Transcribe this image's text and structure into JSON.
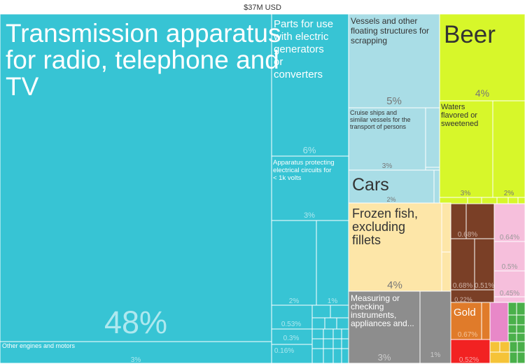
{
  "chart_data": {
    "type": "treemap",
    "title": "$37M USD",
    "colors": {
      "teal": "#37c4d4",
      "lightblue": "#a9dde6",
      "lime": "#d7f72a",
      "cream": "#fde6a8",
      "brown": "#7a3f26",
      "pink": "#f6bfdc",
      "gray": "#8d8d8d",
      "orange": "#e07b2a",
      "red": "#f22222",
      "green": "#4ab04a",
      "violet": "#e888c8",
      "yellow": "#f5c338"
    },
    "items": [
      {
        "id": "transmission",
        "label": "Transmission apparatus for radio, telephone and TV",
        "share": "48%",
        "share_pct": 48,
        "color": "teal"
      },
      {
        "id": "other-engines",
        "label": "Other engines and motors",
        "share": "3%",
        "share_pct": 3,
        "color": "teal"
      },
      {
        "id": "parts-electric",
        "label": "Parts for use with electric generators or converters",
        "share": "6%",
        "share_pct": 6,
        "color": "teal"
      },
      {
        "id": "apparatus-protecting",
        "label": "Apparatus protecting electrical circuits for < 1k volts",
        "share": "3%",
        "share_pct": 3,
        "color": "teal"
      },
      {
        "id": "teal-2",
        "label": "",
        "share": "2%",
        "share_pct": 2,
        "color": "teal"
      },
      {
        "id": "teal-1",
        "label": "",
        "share": "1%",
        "share_pct": 1,
        "color": "teal"
      },
      {
        "id": "teal-053",
        "label": "",
        "share": "0.53%",
        "share_pct": 0.53,
        "color": "teal"
      },
      {
        "id": "teal-03",
        "label": "",
        "share": "0.3%",
        "share_pct": 0.3,
        "color": "teal"
      },
      {
        "id": "teal-016",
        "label": "",
        "share": "0.16%",
        "share_pct": 0.16,
        "color": "teal"
      },
      {
        "id": "vessels-scrapping",
        "label": "Vessels and other floating structures for scrapping",
        "share": "5%",
        "share_pct": 5,
        "color": "lightblue"
      },
      {
        "id": "cruise-ships",
        "label": "Cruise ships and similar vessels for the transport of persons",
        "share": "3%",
        "share_pct": 3,
        "color": "lightblue"
      },
      {
        "id": "cars",
        "label": "Cars",
        "share": "2%",
        "share_pct": 2,
        "color": "lightblue"
      },
      {
        "id": "beer",
        "label": "Beer",
        "share": "4%",
        "share_pct": 4,
        "color": "lime"
      },
      {
        "id": "waters-flavored",
        "label": "Waters flavored or sweetened",
        "share": "3%",
        "share_pct": 3,
        "color": "lime"
      },
      {
        "id": "lime-2",
        "label": "",
        "share": "2%",
        "share_pct": 2,
        "color": "lime"
      },
      {
        "id": "frozen-fish",
        "label": "Frozen fish, excluding fillets",
        "share": "4%",
        "share_pct": 4,
        "color": "cream"
      },
      {
        "id": "measuring",
        "label": "Measuring or checking instruments, appliances and...",
        "share": "3%",
        "share_pct": 3,
        "color": "gray"
      },
      {
        "id": "gray-1",
        "label": "",
        "share": "1%",
        "share_pct": 1,
        "color": "gray"
      },
      {
        "id": "brown-068a",
        "label": "",
        "share": "0.68%",
        "share_pct": 0.68,
        "color": "brown"
      },
      {
        "id": "brown-068b",
        "label": "",
        "share": "0.68%",
        "share_pct": 0.68,
        "color": "brown"
      },
      {
        "id": "brown-051",
        "label": "",
        "share": "0.51%",
        "share_pct": 0.51,
        "color": "brown"
      },
      {
        "id": "brown-022",
        "label": "",
        "share": "0.22%",
        "share_pct": 0.22,
        "color": "brown"
      },
      {
        "id": "pink-064",
        "label": "",
        "share": "0.64%",
        "share_pct": 0.64,
        "color": "pink"
      },
      {
        "id": "pink-05",
        "label": "",
        "share": "0.5%",
        "share_pct": 0.5,
        "color": "pink"
      },
      {
        "id": "pink-045",
        "label": "",
        "share": "0.45%",
        "share_pct": 0.45,
        "color": "pink"
      },
      {
        "id": "gold",
        "label": "Gold",
        "share": "0.67%",
        "share_pct": 0.67,
        "color": "orange"
      },
      {
        "id": "red-052",
        "label": "",
        "share": "0.52%",
        "share_pct": 0.52,
        "color": "red"
      }
    ]
  }
}
